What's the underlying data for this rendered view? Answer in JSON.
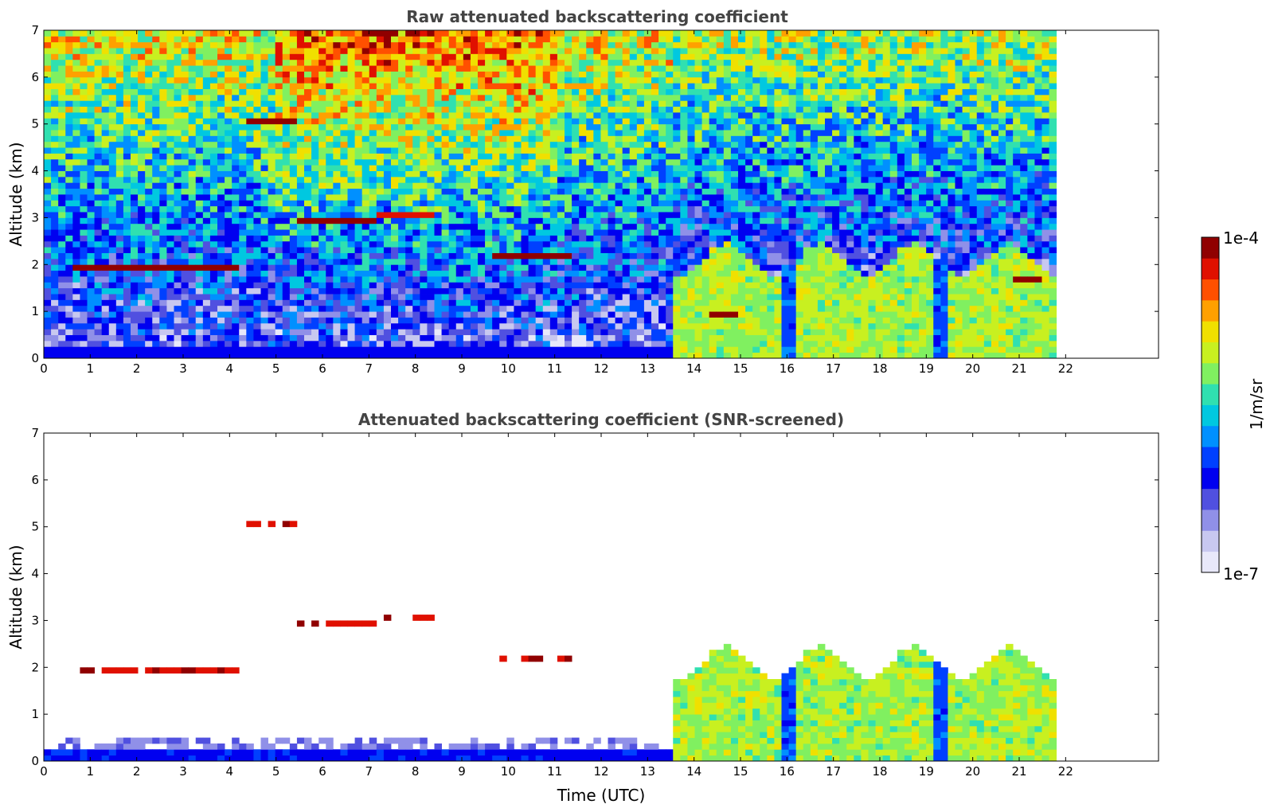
{
  "chart_data": [
    {
      "type": "heatmap",
      "title": "Raw attenuated backscattering coefficient",
      "xlabel": "",
      "ylabel": "Altitude (km)",
      "xlim": [
        0,
        24
      ],
      "ylim": [
        0,
        7
      ],
      "x_ticks": [
        "0",
        "1",
        "2",
        "3",
        "4",
        "5",
        "6",
        "7",
        "8",
        "9",
        "10",
        "11",
        "12",
        "13",
        "14",
        "15",
        "16",
        "17",
        "18",
        "19",
        "20",
        "21",
        "22"
      ],
      "y_ticks": [
        "0",
        "1",
        "2",
        "3",
        "4",
        "5",
        "6",
        "7"
      ],
      "data_extent_x": [
        0,
        21.8
      ],
      "layers": [
        {
          "kind": "layer",
          "x0": 0.6,
          "x1": 4.2,
          "y": 1.9,
          "intensity": 0.95
        },
        {
          "kind": "layer",
          "x0": 4.3,
          "x1": 5.5,
          "y": 5.05,
          "intensity": 0.95
        },
        {
          "kind": "layer",
          "x0": 5.5,
          "x1": 7.2,
          "y": 2.95,
          "intensity": 0.95
        },
        {
          "kind": "layer",
          "x0": 7.2,
          "x1": 8.4,
          "y": 3.05,
          "intensity": 0.9
        },
        {
          "kind": "layer",
          "x0": 9.6,
          "x1": 11.3,
          "y": 2.2,
          "intensity": 0.95
        },
        {
          "kind": "layer",
          "x0": 14.3,
          "x1": 14.9,
          "y": 0.95,
          "intensity": 0.95
        },
        {
          "kind": "layer",
          "x0": 20.8,
          "x1": 21.5,
          "y": 1.65,
          "intensity": 1.0
        }
      ]
    },
    {
      "type": "heatmap",
      "title": "Attenuated backscattering coefficient (SNR-screened)",
      "xlabel": "Time (UTC)",
      "ylabel": "Altitude (km)",
      "xlim": [
        0,
        24
      ],
      "ylim": [
        0,
        7
      ],
      "x_ticks": [
        "0",
        "1",
        "2",
        "3",
        "4",
        "5",
        "6",
        "7",
        "8",
        "9",
        "10",
        "11",
        "12",
        "13",
        "14",
        "15",
        "16",
        "17",
        "18",
        "19",
        "20",
        "21",
        "22"
      ],
      "y_ticks": [
        "0",
        "1",
        "2",
        "3",
        "4",
        "5",
        "6",
        "7"
      ],
      "data_extent_x": [
        0,
        21.8
      ]
    }
  ],
  "colorbar": {
    "min_label": "1e-7",
    "max_label": "1e-4",
    "unit_label": "1/m/sr",
    "colors": [
      "#e8e8fa",
      "#c8c8f0",
      "#9090e8",
      "#5050e0",
      "#0000f0",
      "#0040ff",
      "#0090ff",
      "#00c8e0",
      "#30e0b0",
      "#80f060",
      "#c8f020",
      "#f0e000",
      "#ffa000",
      "#ff5000",
      "#e01000",
      "#900000"
    ]
  }
}
